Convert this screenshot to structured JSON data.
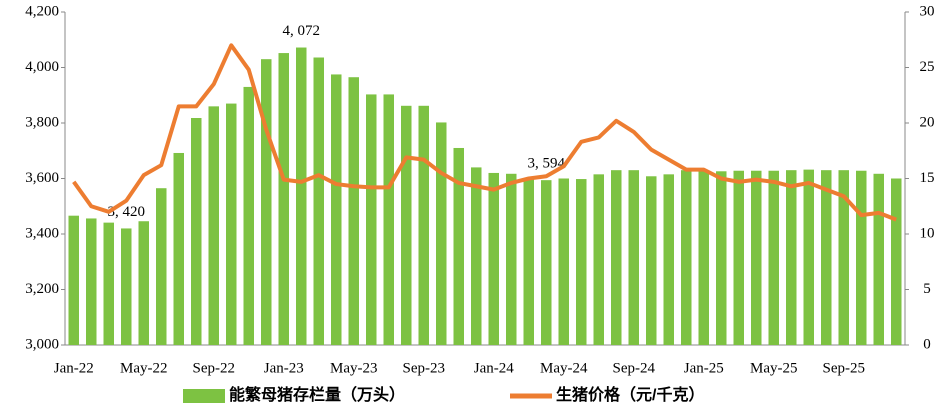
{
  "chart_data": {
    "type": "bar_line",
    "categories": [
      "Jan-22",
      null,
      null,
      null,
      "May-22",
      null,
      null,
      null,
      "Sep-22",
      null,
      null,
      null,
      "Jan-23",
      null,
      null,
      null,
      "May-23",
      null,
      null,
      null,
      "Sep-23",
      null,
      null,
      null,
      "Jan-24",
      null,
      null,
      null,
      "May-24",
      null,
      null,
      null,
      "Sep-24",
      null,
      null,
      null,
      "Jan-25",
      null,
      null,
      null,
      "May-25",
      null,
      null,
      null,
      "Sep-25",
      null,
      null,
      null
    ],
    "series": [
      {
        "name": "能繁母猪存栏量（万头）",
        "type": "bar",
        "color": "#7dc242",
        "values": [
          3466,
          3456,
          3441,
          3420,
          3446,
          3565,
          3692,
          3818,
          3860,
          3870,
          3930,
          4030,
          4052,
          4072,
          4036,
          3975,
          3965,
          3903,
          3903,
          3862,
          3862,
          3802,
          3710,
          3640,
          3620,
          3617,
          3600,
          3594,
          3600,
          3598,
          3615,
          3630,
          3630,
          3608,
          3615,
          3630,
          3628,
          3626,
          3628,
          3628,
          3628,
          3630,
          3632,
          3630,
          3630,
          3628,
          3617,
          3600
        ],
        "value_labels": [
          null,
          null,
          null,
          "3, 420",
          null,
          null,
          null,
          null,
          null,
          null,
          null,
          null,
          null,
          "4, 072",
          null,
          null,
          null,
          null,
          null,
          null,
          null,
          null,
          null,
          null,
          null,
          null,
          null,
          "3, 594",
          null,
          null,
          null,
          null,
          null,
          null,
          null,
          null,
          null,
          null,
          null,
          null,
          null,
          null,
          null,
          null,
          null,
          null,
          null,
          null
        ]
      },
      {
        "name": "生猪价格（元/千克）",
        "type": "line",
        "axis": "y2",
        "color": "#ed7d31",
        "values": [
          14.7,
          12.5,
          12.0,
          13.0,
          15.3,
          16.2,
          21.5,
          21.5,
          23.5,
          27.0,
          24.8,
          19.4,
          14.9,
          14.7,
          15.3,
          14.5,
          14.3,
          14.2,
          14.2,
          16.9,
          16.7,
          15.5,
          14.6,
          14.3,
          14.0,
          14.6,
          15.0,
          15.2,
          16.1,
          18.3,
          18.7,
          20.2,
          19.2,
          17.6,
          16.7,
          15.8,
          15.8,
          15.0,
          14.7,
          14.9,
          14.7,
          14.3,
          14.6,
          14.0,
          13.4,
          11.7,
          11.9,
          11.3
        ]
      }
    ],
    "ylim": [
      3000,
      4200
    ],
    "yticks": [
      {
        "value": 3000,
        "label": "3,000"
      },
      {
        "value": 3200,
        "label": "3,200"
      },
      {
        "value": 3400,
        "label": "3,400"
      },
      {
        "value": 3600,
        "label": "3,600"
      },
      {
        "value": 3800,
        "label": "3,800"
      },
      {
        "value": 4000,
        "label": "4,000"
      },
      {
        "value": 4200,
        "label": "4,200"
      }
    ],
    "y2lim": [
      0,
      30
    ],
    "y2ticks": [
      0,
      5,
      10,
      15,
      20,
      25,
      30
    ],
    "legend": "bottom"
  }
}
